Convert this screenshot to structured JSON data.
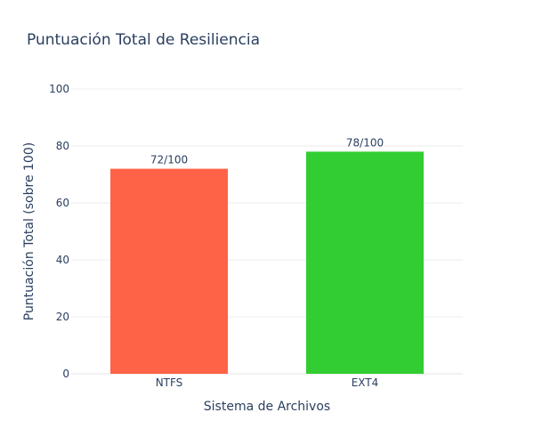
{
  "chart_data": {
    "type": "bar",
    "title": "Puntuación Total de Resiliencia",
    "xlabel": "Sistema de Archivos",
    "ylabel": "Puntuación Total (sobre 100)",
    "categories": [
      "NTFS",
      "EXT4"
    ],
    "values": [
      72,
      78
    ],
    "data_labels": [
      "72/100",
      "78/100"
    ],
    "colors": [
      "#ff6347",
      "#32cd32"
    ],
    "ylim": [
      0,
      100
    ],
    "yticks": [
      "0",
      "20",
      "40",
      "60",
      "80",
      "100"
    ],
    "grid": true,
    "legend": false
  }
}
